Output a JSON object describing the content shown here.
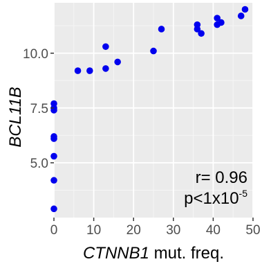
{
  "chart_data": {
    "type": "scatter",
    "xlabel_gene": "CTNNB1",
    "xlabel_rest": " mut. freq.",
    "ylabel": "BCL11B",
    "xlim": [
      0,
      50
    ],
    "ylim": [
      2.5,
      12.3
    ],
    "x_ticks": [
      "0",
      "10",
      "20",
      "30",
      "40",
      "50"
    ],
    "x_tick_values": [
      0,
      10,
      20,
      30,
      40,
      50
    ],
    "y_ticks": [
      "5.0",
      "7.5",
      "10.0"
    ],
    "y_tick_values": [
      5.0,
      7.5,
      10.0
    ],
    "grid": true,
    "point_color": "#0000ee",
    "panel_color": "#ebebeb",
    "points": [
      {
        "x": 0,
        "y": 2.9
      },
      {
        "x": 0,
        "y": 4.2
      },
      {
        "x": 0,
        "y": 5.3
      },
      {
        "x": 0,
        "y": 6.1
      },
      {
        "x": 0,
        "y": 6.2
      },
      {
        "x": 0,
        "y": 7.4
      },
      {
        "x": 0,
        "y": 7.5
      },
      {
        "x": 0,
        "y": 7.7
      },
      {
        "x": 6,
        "y": 9.2
      },
      {
        "x": 9,
        "y": 9.2
      },
      {
        "x": 13,
        "y": 9.3
      },
      {
        "x": 13,
        "y": 10.3
      },
      {
        "x": 16,
        "y": 9.6
      },
      {
        "x": 25,
        "y": 10.1
      },
      {
        "x": 27,
        "y": 11.1
      },
      {
        "x": 36,
        "y": 11.1
      },
      {
        "x": 36,
        "y": 11.3
      },
      {
        "x": 37,
        "y": 10.9
      },
      {
        "x": 41,
        "y": 11.3
      },
      {
        "x": 41,
        "y": 11.6
      },
      {
        "x": 42,
        "y": 11.4
      },
      {
        "x": 47,
        "y": 11.7
      },
      {
        "x": 48,
        "y": 12.0
      }
    ],
    "annotation_r": "r= 0.96",
    "annotation_p_base": "p<1x10",
    "annotation_p_exp": "-5"
  }
}
